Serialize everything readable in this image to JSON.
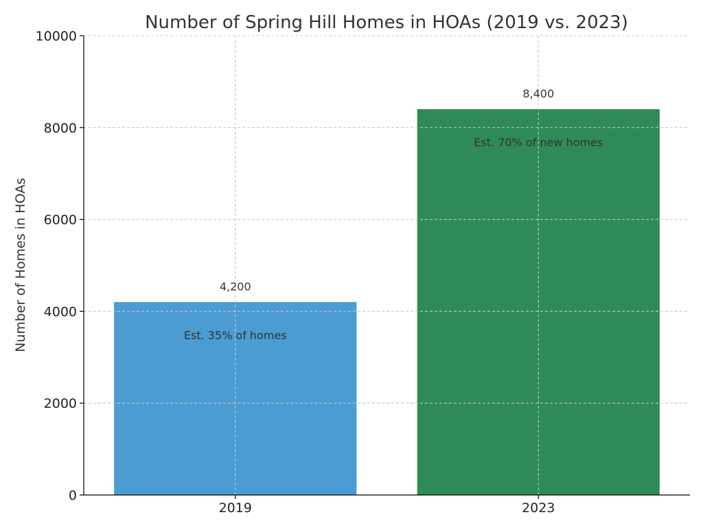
{
  "chart_data": {
    "type": "bar",
    "title": "Number of Spring Hill Homes in HOAs (2019 vs. 2023)",
    "xlabel": "",
    "ylabel": "Number of Homes in HOAs",
    "ylim": [
      0,
      10000
    ],
    "yticks": [
      "0",
      "2000",
      "4000",
      "6000",
      "8000",
      "10000"
    ],
    "categories": [
      "2019",
      "2023"
    ],
    "values": [
      4200,
      8400
    ],
    "value_labels": [
      "4,200",
      "8,400"
    ],
    "annotations": [
      "Est. 35% of homes",
      "Est. 70% of new homes"
    ],
    "colors": [
      "#4b9cd3",
      "#2e8b57"
    ],
    "grid": true
  }
}
